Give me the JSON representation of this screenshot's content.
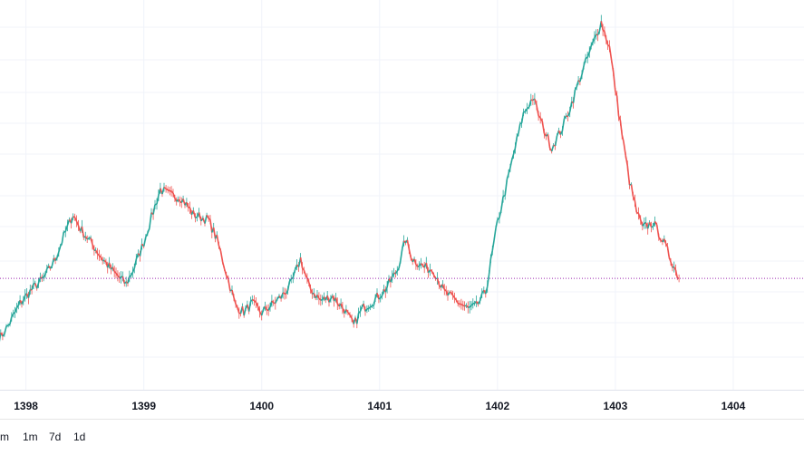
{
  "chart_data": {
    "type": "line",
    "x_ticks": [
      "1398",
      "1399",
      "1400",
      "1401",
      "1402",
      "1403",
      "1404"
    ],
    "series": [
      {
        "values": [
          [
            1397.77,
            30
          ],
          [
            1397.85,
            55
          ],
          [
            1397.95,
            95
          ],
          [
            1398.05,
            120
          ],
          [
            1398.15,
            140
          ],
          [
            1398.25,
            175
          ],
          [
            1398.32,
            215
          ],
          [
            1398.4,
            255
          ],
          [
            1398.46,
            230
          ],
          [
            1398.55,
            205
          ],
          [
            1398.65,
            175
          ],
          [
            1398.75,
            150
          ],
          [
            1398.85,
            130
          ],
          [
            1398.92,
            160
          ],
          [
            1399.0,
            205
          ],
          [
            1399.08,
            260
          ],
          [
            1399.14,
            300
          ],
          [
            1399.22,
            290
          ],
          [
            1399.32,
            285
          ],
          [
            1399.42,
            255
          ],
          [
            1399.55,
            245
          ],
          [
            1399.62,
            210
          ],
          [
            1399.7,
            150
          ],
          [
            1399.78,
            90
          ],
          [
            1399.85,
            80
          ],
          [
            1399.92,
            95
          ],
          [
            1400.0,
            78
          ],
          [
            1400.1,
            95
          ],
          [
            1400.18,
            110
          ],
          [
            1400.25,
            130
          ],
          [
            1400.33,
            175
          ],
          [
            1400.4,
            125
          ],
          [
            1400.5,
            100
          ],
          [
            1400.6,
            108
          ],
          [
            1400.7,
            85
          ],
          [
            1400.78,
            55
          ],
          [
            1400.85,
            85
          ],
          [
            1400.95,
            100
          ],
          [
            1401.05,
            120
          ],
          [
            1401.15,
            155
          ],
          [
            1401.22,
            210
          ],
          [
            1401.28,
            175
          ],
          [
            1401.38,
            160
          ],
          [
            1401.46,
            155
          ],
          [
            1401.55,
            115
          ],
          [
            1401.65,
            100
          ],
          [
            1401.75,
            85
          ],
          [
            1401.82,
            90
          ],
          [
            1401.9,
            115
          ],
          [
            1402.0,
            240
          ],
          [
            1402.08,
            310
          ],
          [
            1402.15,
            375
          ],
          [
            1402.22,
            435
          ],
          [
            1402.3,
            465
          ],
          [
            1402.38,
            415
          ],
          [
            1402.46,
            375
          ],
          [
            1402.55,
            410
          ],
          [
            1402.63,
            455
          ],
          [
            1402.7,
            500
          ],
          [
            1402.78,
            545
          ],
          [
            1402.88,
            600
          ],
          [
            1402.95,
            555
          ],
          [
            1403.0,
            480
          ],
          [
            1403.07,
            380
          ],
          [
            1403.12,
            315
          ],
          [
            1403.18,
            260
          ],
          [
            1403.23,
            230
          ],
          [
            1403.32,
            240
          ],
          [
            1403.4,
            210
          ],
          [
            1403.47,
            175
          ],
          [
            1403.54,
            140
          ]
        ]
      }
    ],
    "xlim": [
      1397.78,
      1404.6
    ],
    "ylim": [
      -60,
      640
    ],
    "current_value": 140,
    "grid": true,
    "colors": {
      "up": "#26a69a",
      "down": "#ef5350",
      "grid": "#f0f3fa",
      "price_line": "#9c27b0"
    }
  },
  "range_buttons": [
    "m",
    "1m",
    "7d",
    "1d"
  ]
}
